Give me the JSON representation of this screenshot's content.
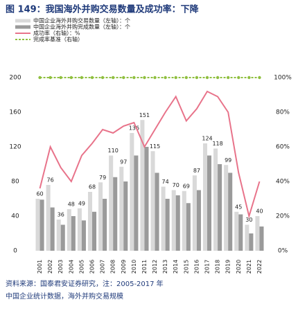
{
  "chart_data": {
    "type": "bar",
    "title": "图 149：我国海外并购交易数量及成功率：下降",
    "footnote": "资料来源：国泰君安证券研究，注：2005-2017 年",
    "footnote2": "中国企业统计数据，海外并购交易规模",
    "categories": [
      "2001",
      "2002",
      "2003",
      "2004",
      "2005",
      "2006",
      "2007",
      "2008",
      "2009",
      "2010",
      "2011",
      "2012",
      "2013",
      "2014",
      "2015",
      "2016",
      "2017",
      "2018",
      "2019",
      "2020",
      "2021",
      "2022"
    ],
    "ylim": [
      0,
      200
    ],
    "yticks": [
      0,
      40,
      80,
      120,
      160,
      200
    ],
    "y2lim": [
      0,
      100
    ],
    "y2ticks": [
      {
        "value": 0,
        "label": "0%"
      },
      {
        "value": 20,
        "label": "20%"
      },
      {
        "value": 40,
        "label": "40%"
      },
      {
        "value": 60,
        "label": "60%"
      },
      {
        "value": 80,
        "label": "80%"
      },
      {
        "value": 100,
        "label": "100%"
      }
    ],
    "series": [
      {
        "name": "中国企业海外并购交易数量（左轴）：个",
        "color": "#d9d9d9",
        "values": [
          60,
          76,
          36,
          48,
          49,
          68,
          79,
          110,
          97,
          136,
          151,
          115,
          74,
          70,
          69,
          87,
          124,
          118,
          99,
          45,
          30,
          40
        ]
      },
      {
        "name": "中国企业海外并购完成数量（左轴）：个",
        "color": "#9a9a9a",
        "values": [
          59,
          50,
          30,
          40,
          35,
          45,
          60,
          85,
          80,
          110,
          120,
          90,
          60,
          64,
          55,
          70,
          110,
          100,
          90,
          42,
          20,
          28
        ]
      },
      {
        "name": "成功率（右轴）：%",
        "color": "#e8738a",
        "axis": "y2",
        "values": [
          36,
          60,
          48,
          40,
          55,
          62,
          70,
          68,
          72,
          74,
          60,
          70,
          80,
          89,
          75,
          82,
          92,
          89,
          80,
          45,
          20,
          40
        ]
      },
      {
        "name": "完成率基准（右轴）",
        "color": "#8fbf3f",
        "axis": "y2",
        "values": [
          100,
          100,
          100,
          100,
          100,
          100,
          100,
          100,
          100,
          100,
          100,
          100,
          100,
          100,
          100,
          100,
          100,
          100,
          100,
          100,
          100,
          100
        ]
      }
    ]
  }
}
